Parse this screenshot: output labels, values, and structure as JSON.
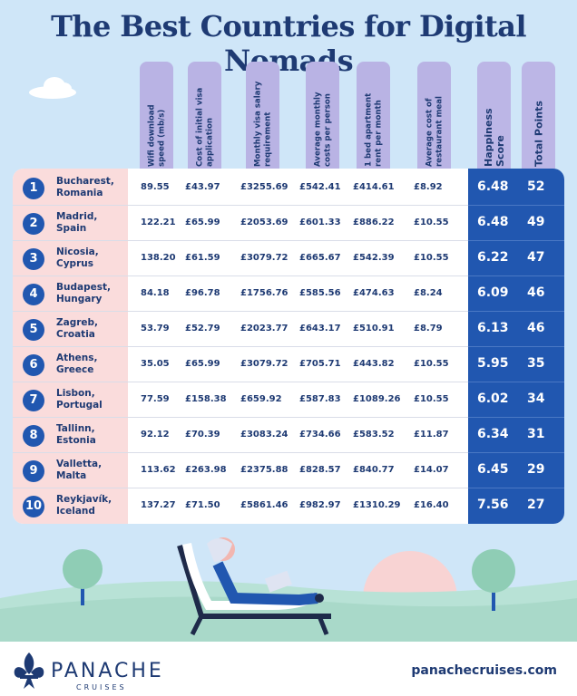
{
  "title": "The Best Countries for Digital Nomads",
  "columns": {
    "wifi": "Wifi download speed (mb/s)",
    "visa_cost": "Cost of initial visa application",
    "salary": "Monthly visa salary requirement",
    "costs": "Average monthly costs per person",
    "rent": "1 bed apartment rent per month",
    "meal": "Average cost of restaurant meal",
    "happiness": "Happiness Score",
    "points": "Total Points"
  },
  "rows": [
    {
      "rank": "1",
      "city": "Bucharest,",
      "country": "Romania",
      "wifi": "89.55",
      "visa_cost": "£43.97",
      "salary": "£3255.69",
      "costs": "£542.41",
      "rent": "£414.61",
      "meal": "£8.92",
      "happiness": "6.48",
      "points": "52"
    },
    {
      "rank": "2",
      "city": "Madrid,",
      "country": "Spain",
      "wifi": "122.21",
      "visa_cost": "£65.99",
      "salary": "£2053.69",
      "costs": "£601.33",
      "rent": "£886.22",
      "meal": "£10.55",
      "happiness": "6.48",
      "points": "49"
    },
    {
      "rank": "3",
      "city": "Nicosia,",
      "country": "Cyprus",
      "wifi": "138.20",
      "visa_cost": "£61.59",
      "salary": "£3079.72",
      "costs": "£665.67",
      "rent": "£542.39",
      "meal": "£10.55",
      "happiness": "6.22",
      "points": "47"
    },
    {
      "rank": "4",
      "city": "Budapest,",
      "country": "Hungary",
      "wifi": "84.18",
      "visa_cost": "£96.78",
      "salary": "£1756.76",
      "costs": "£585.56",
      "rent": "£474.63",
      "meal": "£8.24",
      "happiness": "6.09",
      "points": "46"
    },
    {
      "rank": "5",
      "city": "Zagreb,",
      "country": "Croatia",
      "wifi": "53.79",
      "visa_cost": "£52.79",
      "salary": "£2023.77",
      "costs": "£643.17",
      "rent": "£510.91",
      "meal": "£8.79",
      "happiness": "6.13",
      "points": "46"
    },
    {
      "rank": "6",
      "city": "Athens,",
      "country": "Greece",
      "wifi": "35.05",
      "visa_cost": "£65.99",
      "salary": "£3079.72",
      "costs": "£705.71",
      "rent": "£443.82",
      "meal": "£10.55",
      "happiness": "5.95",
      "points": "35"
    },
    {
      "rank": "7",
      "city": "Lisbon,",
      "country": "Portugal",
      "wifi": "77.59",
      "visa_cost": "£158.38",
      "salary": "£659.92",
      "costs": "£587.83",
      "rent": "£1089.26",
      "meal": "£10.55",
      "happiness": "6.02",
      "points": "34"
    },
    {
      "rank": "8",
      "city": "Tallinn,",
      "country": "Estonia",
      "wifi": "92.12",
      "visa_cost": "£70.39",
      "salary": "£3083.24",
      "costs": "£734.66",
      "rent": "£583.52",
      "meal": "£11.87",
      "happiness": "6.34",
      "points": "31"
    },
    {
      "rank": "9",
      "city": "Valletta,",
      "country": "Malta",
      "wifi": "113.62",
      "visa_cost": "£263.98",
      "salary": "£2375.88",
      "costs": "£828.57",
      "rent": "£840.77",
      "meal": "£14.07",
      "happiness": "6.45",
      "points": "29"
    },
    {
      "rank": "10",
      "city": "Reykjavík,",
      "country": "Iceland",
      "wifi": "137.27",
      "visa_cost": "£71.50",
      "salary": "£5861.46",
      "costs": "£982.97",
      "rent": "£1310.29",
      "meal": "£16.40",
      "happiness": "7.56",
      "points": "27"
    }
  ],
  "footer": {
    "brand": "PANACHE",
    "brand_sub": "CRUISES",
    "website": "panachecruises.com"
  },
  "colors": {
    "navy": "#1e3a73",
    "blue": "#2157b0",
    "lavender": "#b9b3e4",
    "pink": "#fadcdc",
    "sky": "#cfe6f8",
    "grass": "#a9d9c9"
  },
  "icons": [
    "fleur-de-lis-icon",
    "tree-icon",
    "cloud-icon",
    "sun-icon",
    "lounger-woman-icon"
  ]
}
